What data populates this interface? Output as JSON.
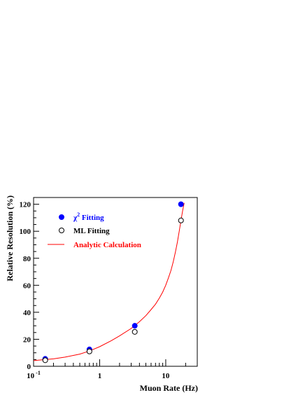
{
  "chart_data": {
    "type": "scatter",
    "xlabel": "Muon Rate (Hz)",
    "ylabel": "Relative Resolution (%)",
    "x_scale": "log",
    "xlim": [
      0.1,
      30
    ],
    "ylim": [
      0,
      125
    ],
    "x_ticks": [
      {
        "value": 0.1,
        "base": "10",
        "exp": "-1"
      },
      {
        "value": 1,
        "base": "1",
        "exp": ""
      },
      {
        "value": 10,
        "base": "10",
        "exp": ""
      }
    ],
    "y_ticks": [
      0,
      20,
      40,
      60,
      80,
      100,
      120
    ],
    "legend_position": "top-left",
    "series": [
      {
        "name": "χ² Fitting",
        "label_main": "χ",
        "label_sup": "2",
        "label_rest": " Fitting",
        "kind": "points",
        "marker": "filled-circle",
        "color": "#0000ff",
        "x": [
          0.15,
          0.7,
          3.4,
          17
        ],
        "y": [
          5.5,
          12.5,
          30,
          120
        ]
      },
      {
        "name": "ML Fitting",
        "label_main": "ML Fitting",
        "label_sup": "",
        "label_rest": "",
        "kind": "points",
        "marker": "open-circle",
        "color": "#000000",
        "x": [
          0.15,
          0.7,
          3.4,
          17
        ],
        "y": [
          4.5,
          11,
          25.5,
          108
        ]
      },
      {
        "name": "Analytic Calculation",
        "label_main": "Analytic Calculation",
        "label_sup": "",
        "label_rest": "",
        "kind": "line",
        "color": "#ff0000",
        "x": [
          0.1,
          0.15,
          0.2,
          0.3,
          0.5,
          0.7,
          1,
          1.5,
          2,
          3,
          4,
          5,
          6,
          7,
          8,
          9,
          10,
          11,
          12,
          13,
          14,
          15,
          16,
          17,
          18,
          19
        ],
        "y": [
          4.2,
          5,
          5.5,
          6.8,
          9,
          11.3,
          14.5,
          19,
          22.5,
          28,
          33,
          37.5,
          42,
          46,
          50.5,
          55,
          60,
          65.5,
          71,
          77.5,
          84.5,
          92,
          100,
          108,
          115,
          121
        ]
      }
    ]
  }
}
